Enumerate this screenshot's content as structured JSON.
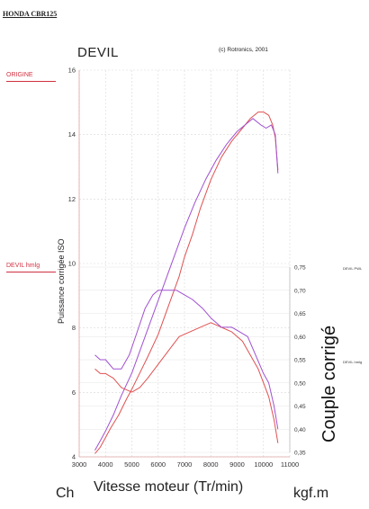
{
  "document": {
    "model_label": "HONDA CBR125"
  },
  "chart_data": {
    "type": "line",
    "title": "DEVIL",
    "copyright": "(c) Rotronics, 2001",
    "xlabel": "Vitesse moteur (Tr/min)",
    "ylabel_left": "Puissance corrigée ISO",
    "ylabel_right": "Couple corrigé",
    "unit_left": "Ch",
    "unit_right": "kgf.m",
    "x_ticks": [
      3000,
      4000,
      5000,
      6000,
      7000,
      8000,
      9000,
      10000,
      11000
    ],
    "xlim": [
      3000,
      11000
    ],
    "y_left_ticks": [
      4,
      6,
      8,
      10,
      12,
      14,
      16
    ],
    "ylim_left": [
      4,
      16
    ],
    "y_right_ticks": [
      "0,35",
      "0,40",
      "0,45",
      "0,50",
      "0,55",
      "0,60",
      "0,65",
      "0,70",
      "0,75"
    ],
    "ylim_right": [
      0.35,
      0.75
    ],
    "grid": true,
    "legend": [
      {
        "label": "ORIGINE",
        "color": "#d03040"
      },
      {
        "label": "DEVIL hmlg",
        "color": "#d03040"
      }
    ],
    "legend_small": [
      "DEVIL PWL",
      "DEVIL hmlg"
    ],
    "colors": {
      "origine": "#e05050",
      "devil": "#a050d0",
      "grid": "#d8d8d8"
    },
    "series": [
      {
        "name": "ORIGINE",
        "axis": "left",
        "color": "#e05050",
        "x": [
          3600,
          3800,
          4000,
          4200,
          4500,
          4800,
          5000,
          5300,
          5600,
          6000,
          6400,
          6800,
          7000,
          7300,
          7600,
          8000,
          8400,
          8800,
          9200,
          9500,
          9800,
          10000,
          10200,
          10350,
          10450,
          10550
        ],
        "y": [
          4.1,
          4.3,
          4.6,
          4.9,
          5.3,
          5.8,
          6.1,
          6.6,
          7.1,
          7.8,
          8.7,
          9.6,
          10.2,
          10.9,
          11.7,
          12.6,
          13.3,
          13.8,
          14.2,
          14.5,
          14.7,
          14.7,
          14.6,
          14.3,
          13.9,
          12.9
        ]
      },
      {
        "name": "DEVIL hmlg",
        "axis": "left",
        "color": "#a050d0",
        "x": [
          3600,
          3800,
          4000,
          4300,
          4600,
          5000,
          5400,
          5800,
          6200,
          6600,
          7000,
          7400,
          7800,
          8200,
          8600,
          9000,
          9300,
          9600,
          9900,
          10100,
          10300,
          10450,
          10550
        ],
        "y": [
          4.2,
          4.5,
          4.8,
          5.3,
          5.9,
          6.6,
          7.5,
          8.4,
          9.3,
          10.2,
          11.1,
          11.9,
          12.6,
          13.2,
          13.7,
          14.1,
          14.3,
          14.5,
          14.3,
          14.2,
          14.3,
          14.0,
          12.8
        ]
      },
      {
        "name": "ORIGINE",
        "axis": "right",
        "color": "#e05050",
        "x": [
          3600,
          3800,
          4000,
          4300,
          4600,
          5000,
          5300,
          5600,
          6000,
          6400,
          6800,
          7200,
          7600,
          8000,
          8400,
          8800,
          9200,
          9500,
          9800,
          10000,
          10200,
          10400,
          10550
        ],
        "y": [
          0.53,
          0.52,
          0.52,
          0.51,
          0.49,
          0.48,
          0.49,
          0.51,
          0.54,
          0.57,
          0.6,
          0.61,
          0.62,
          0.63,
          0.62,
          0.61,
          0.59,
          0.56,
          0.53,
          0.5,
          0.47,
          0.42,
          0.37
        ]
      },
      {
        "name": "DEVIL hmlg",
        "axis": "right",
        "color": "#a050d0",
        "x": [
          3600,
          3800,
          4000,
          4300,
          4600,
          4900,
          5200,
          5500,
          5800,
          6000,
          6300,
          6700,
          7000,
          7300,
          7700,
          8000,
          8400,
          8800,
          9100,
          9400,
          9700,
          10000,
          10200,
          10400,
          10550
        ],
        "y": [
          0.56,
          0.55,
          0.55,
          0.53,
          0.53,
          0.56,
          0.61,
          0.66,
          0.69,
          0.7,
          0.7,
          0.7,
          0.69,
          0.68,
          0.66,
          0.64,
          0.62,
          0.62,
          0.61,
          0.6,
          0.56,
          0.52,
          0.5,
          0.45,
          0.4
        ]
      }
    ]
  }
}
